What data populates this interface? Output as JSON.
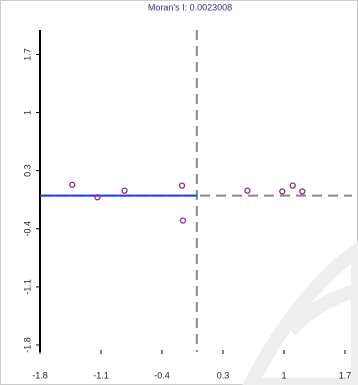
{
  "chart_data": {
    "type": "scatter",
    "title": "Moran's I: 0.0023008",
    "x": [
      -1.43,
      -1.14,
      -0.83,
      -0.17,
      -0.16,
      0.58,
      0.98,
      1.1,
      1.21
    ],
    "series": [
      {
        "color": "#8a2b8a",
        "values": [
          0.13,
          -0.02,
          0.06,
          0.12,
          -0.3,
          0.06,
          0.05,
          0.12,
          0.05
        ]
      }
    ],
    "xlim": [
      -1.8,
      1.7
    ],
    "ylim": [
      -1.8,
      1.85
    ],
    "xticks": [
      -1.8,
      -1.1,
      -0.4,
      0.3,
      1,
      1.7
    ],
    "yticks": [
      -1.8,
      -1.1,
      -0.4,
      0.3,
      1,
      1.7
    ],
    "vline": 0,
    "hline": 0,
    "line_color": "#1f3fe0"
  }
}
